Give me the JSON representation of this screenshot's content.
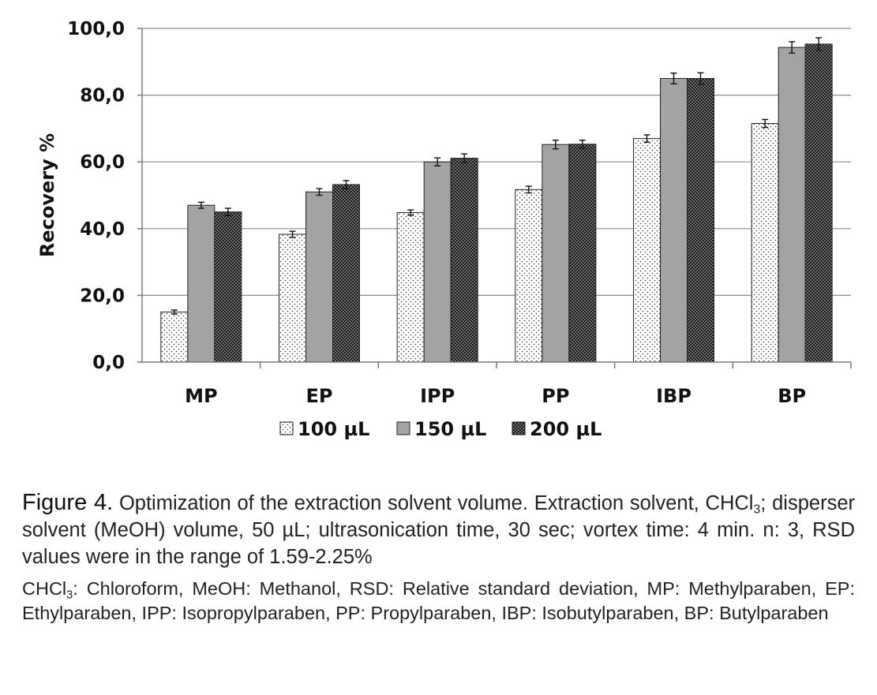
{
  "chart_data": {
    "type": "bar",
    "categories": [
      "MP",
      "EP",
      "IPP",
      "PP",
      "IBP",
      "BP"
    ],
    "series": [
      {
        "name": "100 µL",
        "pattern": "sparse-dots",
        "values": [
          15.0,
          38.3,
          44.8,
          51.7,
          67.0,
          71.5
        ],
        "errors": [
          0.6,
          0.9,
          0.8,
          1.0,
          1.1,
          1.2
        ]
      },
      {
        "name": "150 µL",
        "pattern": "solid-gray",
        "values": [
          47.0,
          51.0,
          60.0,
          65.2,
          85.0,
          94.3
        ],
        "errors": [
          0.9,
          1.0,
          1.2,
          1.3,
          1.6,
          1.7
        ]
      },
      {
        "name": "200 µL",
        "pattern": "dense-dots",
        "values": [
          45.0,
          53.2,
          61.1,
          65.3,
          85.0,
          95.3
        ],
        "errors": [
          1.1,
          1.2,
          1.3,
          1.2,
          1.7,
          1.9
        ]
      }
    ],
    "ylabel": "Recovery %",
    "xlabel": "",
    "ylim": [
      0,
      100
    ],
    "yticks": [
      "0,0",
      "20,0",
      "40,0",
      "60,0",
      "80,0",
      "100,0"
    ],
    "ytick_values": [
      0,
      20,
      40,
      60,
      80,
      100
    ],
    "grid": true,
    "legend_position": "bottom-center"
  },
  "colors": {
    "series_150": "#a3a3a3",
    "grid": "#8c8c8c",
    "axis": "#7a7a7a",
    "bar_outline": "#222222"
  },
  "caption": {
    "label": "Figure 4.",
    "text_before_sub": " Optimization of the extraction solvent volume. Extraction solvent, CHCl",
    "sub": "3",
    "text_after_sub": "; disperser solvent (MeOH) volume, 50 µL; ultrasonication time, 30 sec; vortex time: 4 min. n: 3, RSD values were in the range of 1.59-2.25%"
  },
  "notes": {
    "text_before_sub": "CHCl",
    "sub": "3",
    "text_after_sub": ": Chloroform, MeOH: Methanol, RSD: Relative standard deviation, MP: Methylparaben, EP: Ethylparaben, IPP: Isopropylparaben, PP: Propylparaben, IBP: Isobutylparaben, BP: Butylparaben"
  }
}
